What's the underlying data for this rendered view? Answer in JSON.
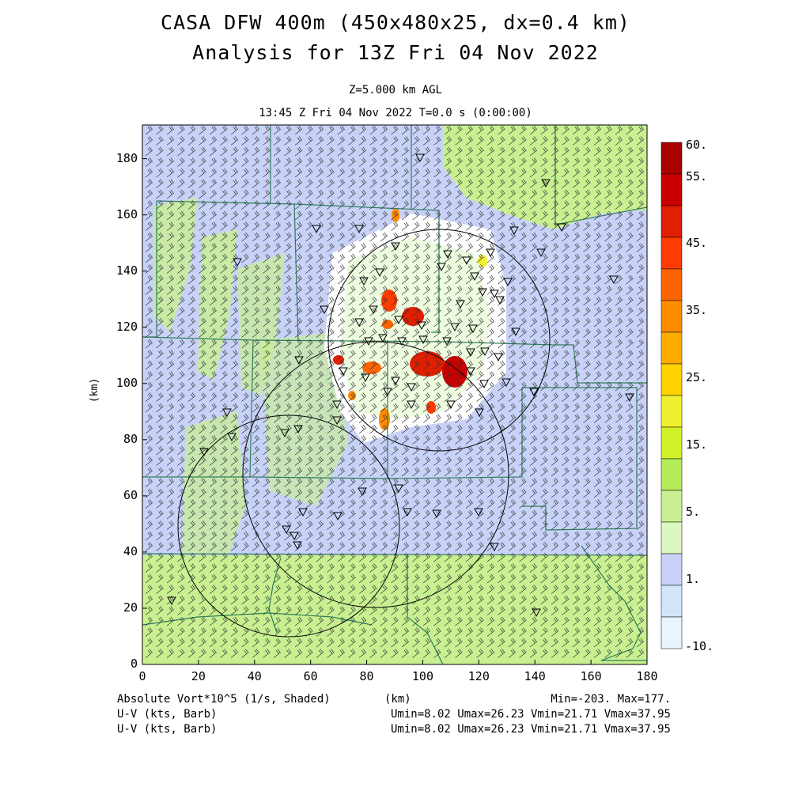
{
  "header": {
    "title_line1": "CASA DFW 400m (450x480x25, dx=0.4 km)",
    "title_line2": "Analysis for 13Z Fri 04 Nov 2022",
    "level": "Z=5.000 km AGL",
    "time": "13:45 Z Fri 04 Nov 2022    T=0.0 s (0:00:00)"
  },
  "axes": {
    "x_ticks": [
      "0",
      "20",
      "40",
      "60",
      "80",
      "100",
      "120",
      "140",
      "160",
      "180"
    ],
    "y_ticks": [
      "0",
      "20",
      "40",
      "60",
      "80",
      "100",
      "120",
      "140",
      "160",
      "180"
    ],
    "y_label": "(km)",
    "x_label": "(km)"
  },
  "colorbar": {
    "labels": [
      "60.",
      "55.",
      "45.",
      "35.",
      "25.",
      "15.",
      "5.",
      "1.",
      "-10."
    ],
    "colors": [
      "#aa0000",
      "#c80000",
      "#e01e00",
      "#ff3c00",
      "#ff6400",
      "#ff8c00",
      "#ffaa00",
      "#ffd200",
      "#f0f030",
      "#d2f028",
      "#b4ec5a",
      "#c8f090",
      "#dcf8c0",
      "#c8d2f8",
      "#d2e6fa",
      "#e6f5ff"
    ]
  },
  "footer": {
    "field1": "Absolute Vort*10^5 (1/s, Shaded)",
    "stats1": "Min=-203. Max=177.",
    "field2": "U-V (kts, Barb)",
    "stats2": "Umin=8.02 Umax=26.23 Vmin=21.71 Vmax=37.95",
    "field3": "U-V (kts, Barb)",
    "stats3": "Umin=8.02 Umax=26.23 Vmin=21.71 Vmax=37.95"
  },
  "map_colors": {
    "background_low": "#c8d2f8",
    "background_mid": "#c8f090",
    "county_lines": "#2e7d5a",
    "range_rings": "#000000"
  }
}
